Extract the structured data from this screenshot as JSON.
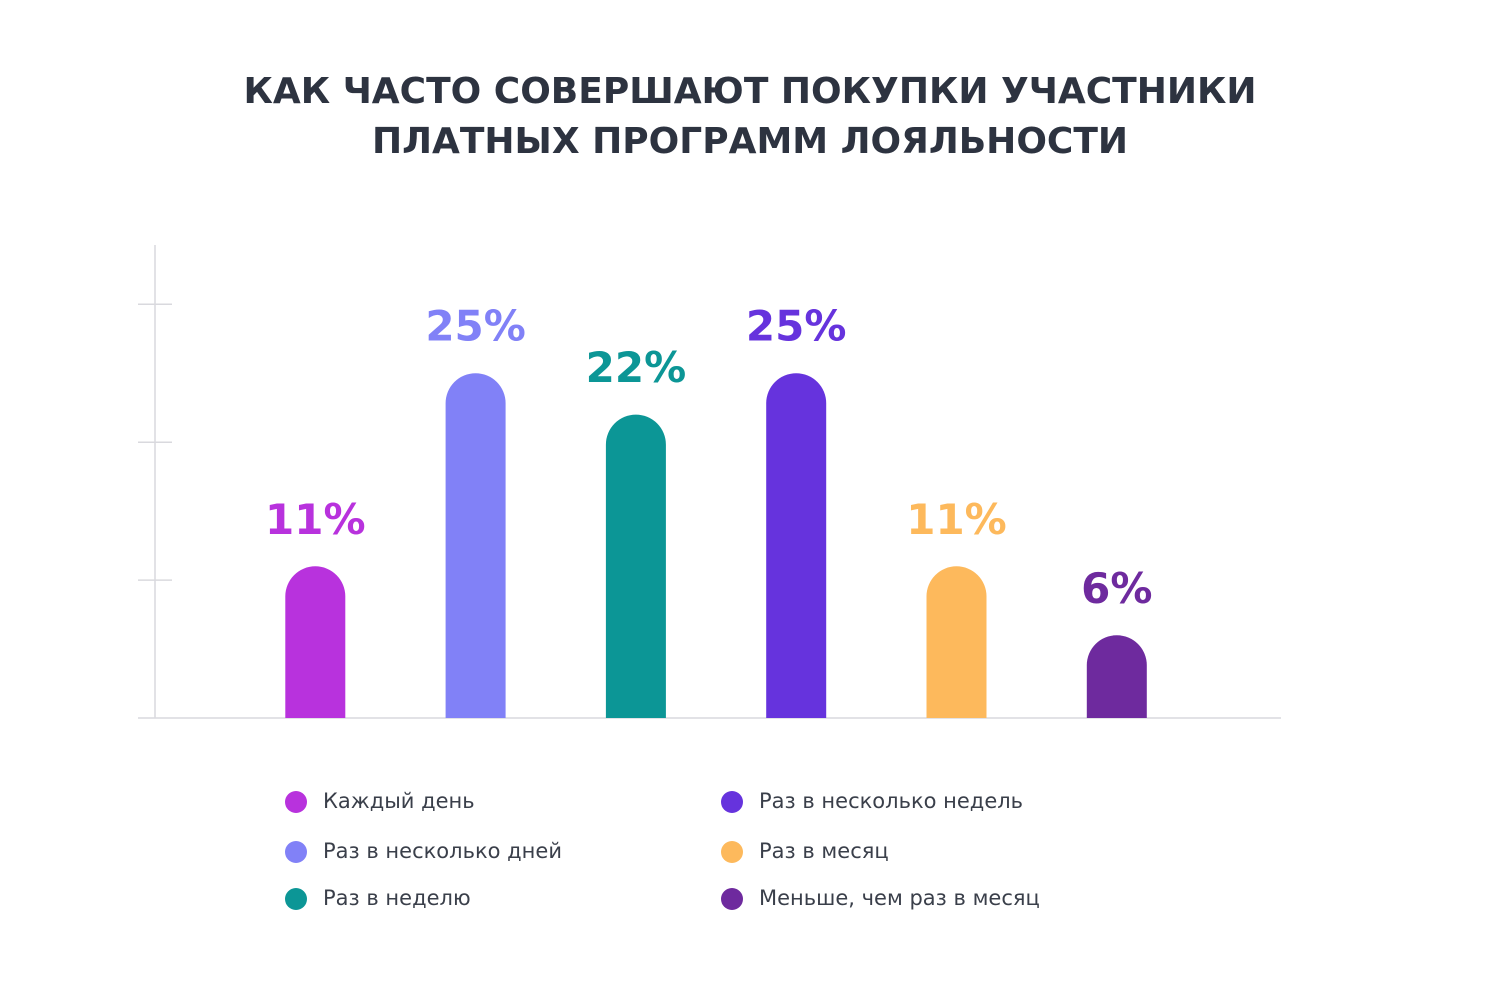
{
  "chart_data": {
    "type": "bar",
    "title": [
      "КАК ЧАСТО СОВЕРШАЮТ ПОКУПКИ УЧАСТНИКИ",
      "ПЛАТНЫХ ПРОГРАММ ЛОЯЛЬНОСТИ"
    ],
    "series": [
      {
        "name": "Каждый день",
        "color": "#b832dd",
        "values": [
          11
        ],
        "value_labels": [
          "11%"
        ]
      },
      {
        "name": "Раз в несколько дней",
        "color": "#8181f7",
        "values": [
          25
        ],
        "value_labels": [
          "25%"
        ]
      },
      {
        "name": "Раз в неделю",
        "color": "#0c9696",
        "values": [
          22
        ],
        "value_labels": [
          "22%"
        ]
      },
      {
        "name": "Раз в несколько недель",
        "color": "#6633dd",
        "values": [
          25
        ],
        "value_labels": [
          "25%"
        ]
      },
      {
        "name": "Раз в месяц",
        "color": "#fdb95c",
        "values": [
          11
        ],
        "value_labels": [
          "11%"
        ]
      },
      {
        "name": "Меньше, чем раз в месяц",
        "color": "#6e2a9e",
        "values": [
          6
        ],
        "value_labels": [
          "6%"
        ]
      }
    ],
    "ylim": [
      0,
      34.3
    ],
    "yticks": [
      10,
      20,
      30
    ]
  }
}
